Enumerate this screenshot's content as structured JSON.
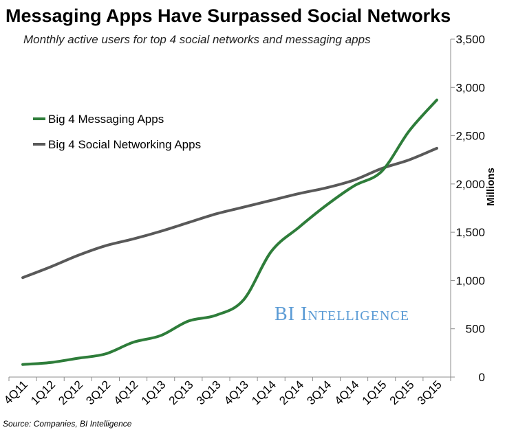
{
  "chart_data": {
    "type": "line",
    "title": "Messaging Apps Have Surpassed Social Networks",
    "subtitle": "Monthly active users for top 4 social networks and messaging apps",
    "ylabel": "Millions",
    "xlabel": "",
    "source": "Source: Companies, BI Intelligence",
    "watermark": "BI Intelligence",
    "ylim": [
      0,
      3500
    ],
    "yticks": [
      "0",
      "500",
      "1,000",
      "1,500",
      "2,000",
      "2,500",
      "3,000",
      "3,500"
    ],
    "ytick_values": [
      0,
      500,
      1000,
      1500,
      2000,
      2500,
      3000,
      3500
    ],
    "y_axis_position": "right",
    "grid": false,
    "legend_position": "top-left",
    "x": [
      "4Q11",
      "1Q12",
      "2Q12",
      "3Q12",
      "4Q12",
      "1Q13",
      "2Q13",
      "3Q13",
      "4Q13",
      "1Q14",
      "2Q14",
      "3Q14",
      "4Q14",
      "1Q15",
      "2Q15",
      "3Q15"
    ],
    "series": [
      {
        "name": "Big 4 Messaging Apps",
        "color": "#2e7d3a",
        "values": [
          130,
          150,
          195,
          240,
          360,
          430,
          580,
          640,
          800,
          1300,
          1550,
          1780,
          1980,
          2130,
          2550,
          2870
        ]
      },
      {
        "name": "Big 4 Social Networking Apps",
        "color": "#595959",
        "values": [
          1030,
          1140,
          1260,
          1360,
          1430,
          1510,
          1600,
          1690,
          1760,
          1830,
          1900,
          1960,
          2040,
          2160,
          2250,
          2370
        ]
      }
    ]
  }
}
